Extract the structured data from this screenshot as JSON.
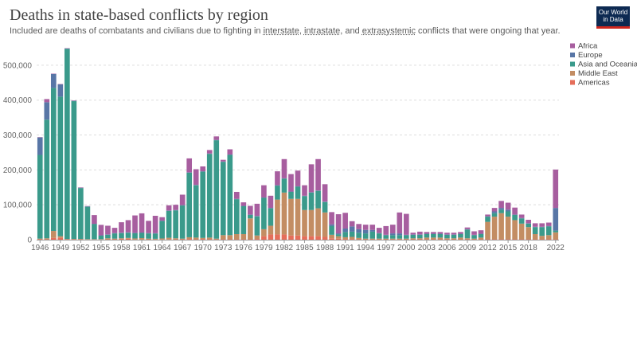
{
  "header": {
    "title": "Deaths in state-based conflicts by region",
    "subtitle_parts": [
      "Included are deaths of combatants and civilians due to fighting in ",
      "interstate",
      ", ",
      "intrastate",
      ", and ",
      "extrasystemic",
      " conflicts that were ongoing that year."
    ],
    "logo_line1": "Our World",
    "logo_line2": "in Data"
  },
  "chart_data": {
    "type": "bar",
    "stacked": true,
    "title": "Deaths in state-based conflicts by region",
    "ylim": [
      0,
      550000
    ],
    "yticks": [
      0,
      100000,
      200000,
      300000,
      400000,
      500000
    ],
    "ytick_labels": [
      "0",
      "100,000",
      "200,000",
      "300,000",
      "400,000",
      "500,000"
    ],
    "xtick_labels": [
      "1946",
      "1949",
      "1952",
      "1955",
      "1958",
      "1961",
      "1964",
      "1967",
      "1970",
      "1973",
      "1976",
      "1979",
      "1982",
      "1985",
      "1988",
      "1991",
      "1994",
      "1997",
      "2000",
      "2003",
      "2006",
      "2009",
      "2012",
      "2015",
      "2018",
      "2022"
    ],
    "grid": true,
    "legend_position": "top-right",
    "categories": [
      1946,
      1947,
      1948,
      1949,
      1950,
      1951,
      1952,
      1953,
      1954,
      1955,
      1956,
      1957,
      1958,
      1959,
      1960,
      1961,
      1962,
      1963,
      1964,
      1965,
      1966,
      1967,
      1968,
      1969,
      1970,
      1971,
      1972,
      1973,
      1974,
      1975,
      1976,
      1977,
      1978,
      1979,
      1980,
      1981,
      1982,
      1983,
      1984,
      1985,
      1986,
      1987,
      1988,
      1989,
      1990,
      1991,
      1992,
      1993,
      1994,
      1995,
      1996,
      1997,
      1998,
      1999,
      2000,
      2001,
      2002,
      2003,
      2004,
      2005,
      2006,
      2007,
      2008,
      2009,
      2010,
      2011,
      2012,
      2013,
      2014,
      2015,
      2016,
      2017,
      2018,
      2019,
      2020,
      2021,
      2022
    ],
    "series": [
      {
        "name": "Americas",
        "color": "#e56e5a",
        "values": [
          1000,
          1000,
          5000,
          5000,
          1000,
          1000,
          1000,
          500,
          500,
          500,
          1000,
          1000,
          2000,
          3000,
          500,
          500,
          1000,
          500,
          500,
          500,
          1000,
          1000,
          2000,
          1000,
          2000,
          1000,
          1000,
          1000,
          1000,
          1000,
          1000,
          1000,
          2000,
          10000,
          15000,
          15000,
          15000,
          12000,
          12000,
          10000,
          10000,
          10000,
          8000,
          4000,
          3000,
          2000,
          2000,
          1000,
          1000,
          1000,
          1000,
          1000,
          1000,
          1000,
          1000,
          1000,
          1000,
          1000,
          1000,
          1000,
          1000,
          1000,
          1000,
          1000,
          1000,
          1000,
          1000,
          1000,
          1000,
          1000,
          1000,
          1000,
          1000,
          1000,
          1000,
          1000,
          1000
        ]
      },
      {
        "name": "Middle East",
        "color": "#c38d63",
        "values": [
          2000,
          3000,
          20000,
          5000,
          1000,
          1000,
          1000,
          1000,
          1000,
          1000,
          3000,
          2000,
          2000,
          2000,
          3000,
          4000,
          2000,
          2000,
          3000,
          5000,
          3000,
          2000,
          5000,
          5000,
          3000,
          5000,
          2000,
          12000,
          12000,
          15000,
          15000,
          60000,
          10000,
          20000,
          25000,
          100000,
          120000,
          105000,
          105000,
          75000,
          75000,
          80000,
          70000,
          10000,
          7000,
          5000,
          6000,
          4000,
          2000,
          2000,
          2000,
          2000,
          2000,
          2000,
          2000,
          3000,
          3000,
          5000,
          5000,
          5000,
          3000,
          3000,
          5000,
          3000,
          2000,
          5000,
          50000,
          65000,
          75000,
          65000,
          55000,
          45000,
          35000,
          15000,
          10000,
          12000,
          20000
        ]
      },
      {
        "name": "Asia and Oceania",
        "color": "#3a9a8b",
        "values": [
          240000,
          340000,
          410000,
          400000,
          545000,
          395000,
          146000,
          93000,
          43000,
          10000,
          10000,
          15000,
          15000,
          15000,
          15000,
          15000,
          15000,
          15000,
          50000,
          77000,
          80000,
          95000,
          185000,
          150000,
          190000,
          240000,
          282000,
          210000,
          230000,
          100000,
          80000,
          10000,
          55000,
          90000,
          50000,
          40000,
          40000,
          20000,
          35000,
          40000,
          50000,
          50000,
          30000,
          25000,
          5000,
          15000,
          15000,
          15000,
          15000,
          20000,
          15000,
          10000,
          10000,
          10000,
          10000,
          10000,
          10000,
          10000,
          10000,
          10000,
          10000,
          10000,
          10000,
          25000,
          10000,
          10000,
          15000,
          10000,
          10000,
          15000,
          15000,
          15000,
          10000,
          20000,
          25000,
          25000,
          5000
        ]
      },
      {
        "name": "Europe",
        "color": "#5876a6",
        "values": [
          50000,
          50000,
          40000,
          35000,
          1000,
          1000,
          1000,
          1000,
          1000,
          1000,
          1000,
          1000,
          1000,
          1000,
          1000,
          1000,
          1000,
          1000,
          1000,
          1000,
          1000,
          1000,
          1000,
          1000,
          1000,
          1000,
          1000,
          1000,
          1000,
          1000,
          1000,
          1000,
          1000,
          1000,
          1000,
          1000,
          1000,
          1000,
          1000,
          1000,
          1000,
          1000,
          1000,
          5000,
          3000,
          10000,
          15000,
          10000,
          10000,
          5000,
          1000,
          1000,
          5000,
          5000,
          1000,
          1000,
          1000,
          1000,
          1000,
          1000,
          1000,
          1000,
          1000,
          1000,
          1000,
          1000,
          1000,
          5000,
          5000,
          5000,
          1000,
          1000,
          1000,
          1000,
          1000,
          1000,
          65000
        ]
      },
      {
        "name": "Africa",
        "color": "#a75e9f",
        "values": [
          1000,
          9000,
          1000,
          1000,
          1000,
          1000,
          1000,
          1000,
          25000,
          30000,
          25000,
          15000,
          30000,
          35000,
          50000,
          55000,
          35000,
          50000,
          10000,
          15000,
          15000,
          30000,
          40000,
          45000,
          14000,
          10000,
          10000,
          5000,
          15000,
          20000,
          10000,
          25000,
          35000,
          35000,
          35000,
          40000,
          55000,
          50000,
          45000,
          30000,
          80000,
          90000,
          50000,
          35000,
          55000,
          45000,
          15000,
          15000,
          15000,
          15000,
          15000,
          25000,
          25000,
          60000,
          60000,
          5000,
          8000,
          5000,
          5000,
          5000,
          5000,
          5000,
          5000,
          5000,
          10000,
          10000,
          5000,
          10000,
          20000,
          20000,
          20000,
          10000,
          10000,
          10000,
          10000,
          10000,
          110000
        ]
      }
    ]
  }
}
